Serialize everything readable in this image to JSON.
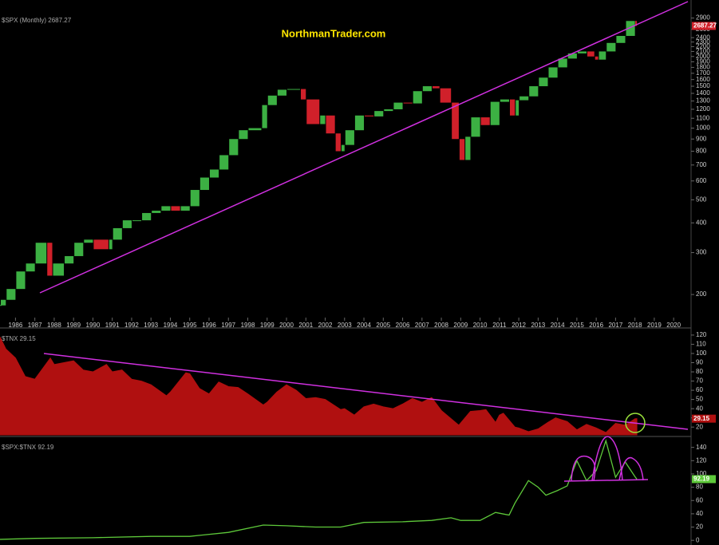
{
  "chart_data": [
    {
      "type": "candlestick",
      "legend": "$SPX (Monthly) 2687.27",
      "watermark": "NorthmanTrader.com",
      "log_scale": true,
      "up_color": "#3cb043",
      "down_color": "#d0202a",
      "xlim": [
        1985.2,
        2020.9
      ],
      "xticks": [
        1986,
        1987,
        1988,
        1989,
        1990,
        1991,
        1992,
        1993,
        1994,
        1995,
        1996,
        1997,
        1998,
        1999,
        2000,
        2001,
        2002,
        2003,
        2004,
        2005,
        2006,
        2007,
        2008,
        2009,
        2010,
        2011,
        2012,
        2013,
        2014,
        2015,
        2016,
        2017,
        2018,
        2019,
        2020
      ],
      "ylim": [
        160,
        3100
      ],
      "yticks": [
        200,
        300,
        400,
        500,
        600,
        700,
        800,
        900,
        1000,
        1100,
        1200,
        1300,
        1400,
        1500,
        1600,
        1700,
        1800,
        1900,
        2000,
        2100,
        2200,
        2300,
        2400,
        2600,
        2900
      ],
      "x": [
        1985.2,
        1985.5,
        1986,
        1986.5,
        1987,
        1987.6,
        1987.9,
        1988.5,
        1989,
        1989.5,
        1990,
        1990.8,
        1991,
        1991.5,
        1992,
        1992.5,
        1993,
        1993.5,
        1994,
        1994.5,
        1995,
        1995.5,
        1996,
        1996.5,
        1997,
        1997.5,
        1998,
        1998.7,
        1999,
        1999.5,
        2000,
        2000.7,
        2001,
        2001.7,
        2002,
        2002.5,
        2002.8,
        2003,
        2003.5,
        2004,
        2004.5,
        2005,
        2005.5,
        2006,
        2006.5,
        2007,
        2007.5,
        2007.9,
        2008.5,
        2008.9,
        2009.2,
        2009.5,
        2010,
        2010.5,
        2011,
        2011.5,
        2011.8,
        2012,
        2012.5,
        2013,
        2013.5,
        2014,
        2014.5,
        2015,
        2015.5,
        2015.9,
        2016.1,
        2016.5,
        2017,
        2017.5,
        2018,
        2018.1
      ],
      "values": [
        180,
        190,
        211,
        250,
        270,
        330,
        240,
        270,
        290,
        330,
        340,
        310,
        340,
        380,
        410,
        410,
        440,
        450,
        470,
        450,
        470,
        550,
        620,
        670,
        770,
        900,
        980,
        1000,
        1250,
        1370,
        1450,
        1460,
        1320,
        1040,
        1130,
        950,
        800,
        850,
        980,
        1130,
        1120,
        1180,
        1200,
        1280,
        1270,
        1430,
        1500,
        1470,
        1280,
        900,
        735,
        920,
        1110,
        1030,
        1290,
        1320,
        1130,
        1310,
        1360,
        1500,
        1630,
        1800,
        1960,
        2060,
        2100,
        2000,
        1940,
        2100,
        2280,
        2440,
        2820,
        2687.27
      ]
    },
    {
      "type": "area",
      "legend": "$TNX 29.15",
      "color": "#b01010",
      "ylim": [
        11.5,
        126
      ],
      "yticks": [
        20,
        30,
        40,
        50,
        60,
        70,
        80,
        90,
        100,
        110,
        120
      ],
      "x": [
        1985.2,
        1985.5,
        1986,
        1986.5,
        1987,
        1987.8,
        1988,
        1988.5,
        1989,
        1989.5,
        1990,
        1990.7,
        1991,
        1991.5,
        1992,
        1992.5,
        1993,
        1993.8,
        1994,
        1994.8,
        1995,
        1995.5,
        1996,
        1996.5,
        1997,
        1997.5,
        1998,
        1998.8,
        1999,
        1999.5,
        2000,
        2000.5,
        2001,
        2001.5,
        2002,
        2002.8,
        2003,
        2003.5,
        2004,
        2004.5,
        2005,
        2005.5,
        2006,
        2006.5,
        2007,
        2007.5,
        2008,
        2008.9,
        2009.5,
        2010,
        2010.3,
        2010.8,
        2011,
        2011.2,
        2011.8,
        2012,
        2012.5,
        2013,
        2013.5,
        2013.9,
        2014.5,
        2015,
        2015.5,
        2016,
        2016.5,
        2017,
        2017.5,
        2018,
        2018.1
      ],
      "values": [
        118,
        105,
        95,
        75,
        72,
        95,
        88,
        90,
        92,
        82,
        80,
        88,
        80,
        82,
        72,
        70,
        66,
        54,
        58,
        79,
        78,
        62,
        56,
        69,
        64,
        63,
        56,
        44,
        47,
        58,
        66,
        60,
        51,
        52,
        50,
        39,
        40,
        33,
        42,
        45,
        42,
        40,
        45,
        51,
        47,
        52,
        38,
        22,
        37,
        38,
        39,
        25,
        33,
        35,
        20,
        19,
        15,
        18,
        25,
        30,
        26,
        17,
        23,
        19,
        14,
        24,
        22,
        29,
        29.15
      ]
    },
    {
      "type": "line",
      "legend": "$SPX:$TNX 92.19",
      "color": "#5ec93a",
      "ylim": [
        -7,
        154
      ],
      "yticks": [
        0,
        20,
        40,
        60,
        80,
        100,
        120,
        140
      ],
      "x": [
        1985.2,
        1987,
        1990,
        1993,
        1995,
        1997,
        1998.8,
        2000,
        2001.5,
        2002.8,
        2004,
        2006,
        2007.5,
        2008.5,
        2009,
        2010,
        2010.8,
        2011.5,
        2011.8,
        2012.5,
        2013,
        2013.4,
        2014,
        2014.5,
        2015,
        2015.5,
        2016,
        2016.5,
        2017,
        2017.5,
        2018,
        2018.1
      ],
      "values": [
        1.5,
        3,
        4,
        6,
        6,
        12,
        23,
        22,
        20,
        20,
        27,
        28,
        30,
        34,
        30,
        30,
        42,
        38,
        56,
        90,
        80,
        68,
        75,
        82,
        120,
        90,
        105,
        150,
        95,
        118,
        96,
        92.19
      ]
    }
  ]
}
